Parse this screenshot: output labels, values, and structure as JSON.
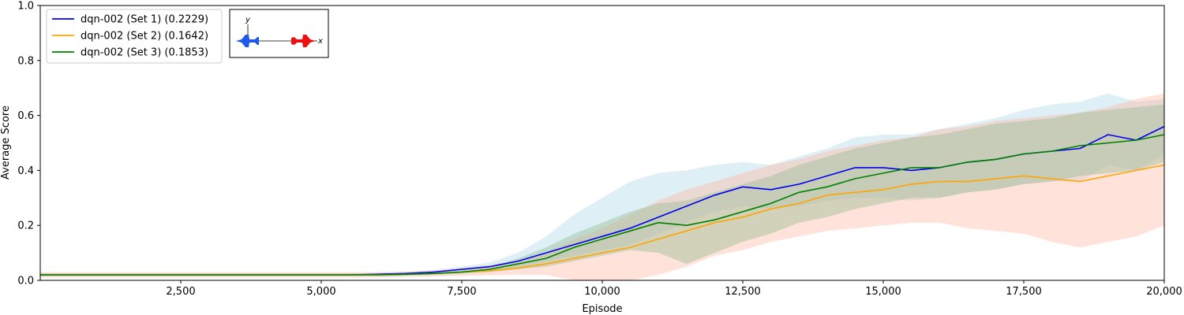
{
  "chart_data": {
    "type": "line",
    "xlabel": "Episode",
    "ylabel": "Average Score",
    "xlim": [
      0,
      20000
    ],
    "ylim": [
      0,
      1.0
    ],
    "x_ticks": [
      2500,
      5000,
      7500,
      10000,
      12500,
      15000,
      17500,
      20000
    ],
    "x_tick_labels": [
      "2,500",
      "5,000",
      "7,500",
      "10,000",
      "12,500",
      "15,000",
      "17,500",
      "20,000"
    ],
    "y_ticks": [
      0.0,
      0.2,
      0.4,
      0.6,
      0.8,
      1.0
    ],
    "y_tick_labels": [
      "0.0",
      "0.2",
      "0.4",
      "0.6",
      "0.8",
      "1.0"
    ],
    "grid": false,
    "legend_position": "top-left",
    "x": [
      0,
      1000,
      2000,
      3000,
      4000,
      5000,
      5500,
      6000,
      6500,
      7000,
      7500,
      8000,
      8500,
      9000,
      9500,
      10000,
      10500,
      11000,
      11500,
      12000,
      12500,
      13000,
      13500,
      14000,
      14500,
      15000,
      15500,
      16000,
      16500,
      17000,
      17500,
      18000,
      18500,
      19000,
      19500,
      20000
    ],
    "series": [
      {
        "name": "dqn-002 (Set 1) (0.2229)",
        "color": "#0000ee",
        "band_color": "#add8e6",
        "values": [
          0.02,
          0.02,
          0.02,
          0.02,
          0.02,
          0.02,
          0.02,
          0.022,
          0.025,
          0.03,
          0.04,
          0.05,
          0.07,
          0.1,
          0.13,
          0.16,
          0.19,
          0.23,
          0.27,
          0.31,
          0.34,
          0.33,
          0.35,
          0.38,
          0.41,
          0.41,
          0.4,
          0.41,
          0.43,
          0.44,
          0.46,
          0.47,
          0.48,
          0.53,
          0.51,
          0.56
        ],
        "lower": [
          0.018,
          0.018,
          0.018,
          0.018,
          0.018,
          0.018,
          0.018,
          0.019,
          0.02,
          0.024,
          0.032,
          0.04,
          0.05,
          0.07,
          0.09,
          0.11,
          0.13,
          0.17,
          0.21,
          0.25,
          0.27,
          0.26,
          0.27,
          0.29,
          0.3,
          0.3,
          0.29,
          0.3,
          0.32,
          0.33,
          0.35,
          0.36,
          0.36,
          0.42,
          0.4,
          0.46
        ],
        "upper": [
          0.025,
          0.025,
          0.025,
          0.025,
          0.025,
          0.025,
          0.025,
          0.027,
          0.03,
          0.038,
          0.05,
          0.065,
          0.1,
          0.16,
          0.24,
          0.3,
          0.36,
          0.39,
          0.4,
          0.42,
          0.43,
          0.42,
          0.45,
          0.48,
          0.52,
          0.53,
          0.53,
          0.55,
          0.57,
          0.59,
          0.62,
          0.64,
          0.65,
          0.68,
          0.65,
          0.66
        ]
      },
      {
        "name": "dqn-002 (Set 2) (0.1642)",
        "color": "#ffa500",
        "band_color": "#ffb6a0",
        "values": [
          0.02,
          0.02,
          0.02,
          0.02,
          0.02,
          0.02,
          0.02,
          0.02,
          0.022,
          0.025,
          0.03,
          0.035,
          0.045,
          0.06,
          0.08,
          0.1,
          0.12,
          0.15,
          0.18,
          0.21,
          0.23,
          0.26,
          0.28,
          0.31,
          0.32,
          0.33,
          0.35,
          0.36,
          0.36,
          0.37,
          0.38,
          0.37,
          0.36,
          0.38,
          0.4,
          0.42
        ],
        "lower": [
          0.01,
          0.01,
          0.01,
          0.01,
          0.01,
          0.01,
          0.01,
          0.01,
          0.012,
          0.014,
          0.016,
          0.018,
          0.02,
          0.02,
          0.0,
          0.0,
          0.0,
          0.02,
          0.05,
          0.09,
          0.11,
          0.14,
          0.16,
          0.18,
          0.19,
          0.2,
          0.21,
          0.21,
          0.19,
          0.18,
          0.17,
          0.14,
          0.12,
          0.14,
          0.16,
          0.2
        ],
        "upper": [
          0.03,
          0.03,
          0.03,
          0.03,
          0.03,
          0.03,
          0.03,
          0.03,
          0.032,
          0.036,
          0.045,
          0.055,
          0.07,
          0.1,
          0.15,
          0.19,
          0.24,
          0.29,
          0.33,
          0.36,
          0.39,
          0.42,
          0.44,
          0.47,
          0.49,
          0.51,
          0.52,
          0.55,
          0.56,
          0.58,
          0.59,
          0.6,
          0.61,
          0.63,
          0.66,
          0.68
        ]
      },
      {
        "name": "dqn-002 (Set 3) (0.1853)",
        "color": "#008000",
        "band_color": "#8fbc8f",
        "values": [
          0.02,
          0.02,
          0.02,
          0.02,
          0.02,
          0.02,
          0.02,
          0.02,
          0.022,
          0.025,
          0.03,
          0.04,
          0.06,
          0.08,
          0.12,
          0.15,
          0.18,
          0.21,
          0.2,
          0.22,
          0.25,
          0.28,
          0.32,
          0.34,
          0.37,
          0.39,
          0.41,
          0.41,
          0.43,
          0.44,
          0.46,
          0.47,
          0.49,
          0.5,
          0.51,
          0.53
        ],
        "lower": [
          0.015,
          0.015,
          0.015,
          0.015,
          0.015,
          0.015,
          0.015,
          0.015,
          0.017,
          0.02,
          0.024,
          0.03,
          0.04,
          0.05,
          0.07,
          0.09,
          0.11,
          0.1,
          0.06,
          0.1,
          0.14,
          0.17,
          0.21,
          0.23,
          0.26,
          0.28,
          0.3,
          0.3,
          0.32,
          0.33,
          0.35,
          0.36,
          0.38,
          0.39,
          0.4,
          0.43
        ],
        "upper": [
          0.025,
          0.025,
          0.025,
          0.025,
          0.025,
          0.025,
          0.025,
          0.025,
          0.027,
          0.03,
          0.04,
          0.05,
          0.08,
          0.12,
          0.17,
          0.21,
          0.25,
          0.28,
          0.29,
          0.32,
          0.35,
          0.38,
          0.42,
          0.45,
          0.48,
          0.5,
          0.52,
          0.53,
          0.55,
          0.57,
          0.58,
          0.59,
          0.61,
          0.62,
          0.63,
          0.64
        ]
      }
    ]
  },
  "inset": {
    "y_label": "y",
    "x_label": "x",
    "left_jet_color": "#1e5ae6",
    "right_jet_color": "#ee1010",
    "left_jet_icon": "blue-jet-icon",
    "right_jet_icon": "red-jet-icon"
  }
}
